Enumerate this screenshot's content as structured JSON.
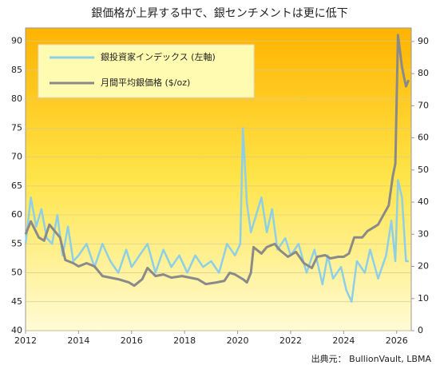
{
  "chart_data": {
    "type": "line",
    "title": "銀価格が上昇する中で、銀センチメントは更に低下",
    "source": "出典元： BullionVault, LBMA",
    "xlim": [
      2012,
      2026.55
    ],
    "xticks": [
      2012,
      2014,
      2016,
      2018,
      2020,
      2022,
      2024,
      2026
    ],
    "ylim": [
      40,
      92.3
    ],
    "yticks": [
      40,
      45,
      50,
      55,
      60,
      65,
      70,
      75,
      80,
      85,
      90
    ],
    "y2lim": [
      0,
      94.2
    ],
    "y2ticks": [
      0,
      10,
      20,
      30,
      40,
      50,
      60,
      70,
      80,
      90
    ],
    "grid": true,
    "series": [
      {
        "name": "銀投資家インデックス (左軸)",
        "color": "#8ecfe8",
        "axis": "y",
        "x": [
          2012.0,
          2012.2,
          2012.4,
          2012.6,
          2012.8,
          2013.0,
          2013.2,
          2013.4,
          2013.6,
          2013.8,
          2014.0,
          2014.3,
          2014.6,
          2014.9,
          2015.2,
          2015.5,
          2015.8,
          2016.0,
          2016.3,
          2016.6,
          2016.9,
          2017.2,
          2017.5,
          2017.8,
          2018.1,
          2018.4,
          2018.7,
          2019.0,
          2019.3,
          2019.6,
          2019.9,
          2020.1,
          2020.2,
          2020.35,
          2020.5,
          2020.7,
          2020.9,
          2021.1,
          2021.3,
          2021.5,
          2021.8,
          2022.0,
          2022.3,
          2022.6,
          2022.9,
          2023.2,
          2023.4,
          2023.6,
          2023.9,
          2024.1,
          2024.3,
          2024.5,
          2024.8,
          2025.0,
          2025.3,
          2025.6,
          2025.8,
          2025.95,
          2026.05,
          2026.2,
          2026.35,
          2026.45
        ],
        "values": [
          55,
          63,
          58,
          61,
          56,
          55,
          60,
          53,
          58,
          52,
          53,
          55,
          51,
          55,
          52,
          50,
          54,
          51,
          53,
          55,
          50,
          54,
          51,
          53,
          50,
          53,
          51,
          52,
          50,
          55,
          53,
          55,
          75,
          62,
          57,
          60,
          63,
          57,
          61,
          54,
          56,
          53,
          55,
          50,
          54,
          48,
          53,
          49,
          51,
          47,
          45,
          52,
          50,
          54,
          49,
          53,
          59,
          52,
          66,
          63,
          52,
          52
        ]
      },
      {
        "name": "月間平均銀価格 ($/oz)",
        "color": "#8a8a8a",
        "axis": "y2",
        "x": [
          2012.0,
          2012.2,
          2012.5,
          2012.7,
          2012.9,
          2013.1,
          2013.3,
          2013.5,
          2013.8,
          2014.0,
          2014.3,
          2014.6,
          2014.9,
          2015.2,
          2015.5,
          2015.9,
          2016.1,
          2016.4,
          2016.6,
          2016.9,
          2017.2,
          2017.5,
          2017.9,
          2018.2,
          2018.5,
          2018.8,
          2019.2,
          2019.5,
          2019.7,
          2019.9,
          2020.2,
          2020.35,
          2020.5,
          2020.6,
          2020.9,
          2021.1,
          2021.4,
          2021.6,
          2021.9,
          2022.2,
          2022.5,
          2022.8,
          2023.0,
          2023.3,
          2023.5,
          2023.8,
          2024.0,
          2024.2,
          2024.4,
          2024.7,
          2024.9,
          2025.1,
          2025.3,
          2025.5,
          2025.7,
          2025.85,
          2025.95,
          2026.05,
          2026.2,
          2026.35,
          2026.45
        ],
        "values": [
          30,
          34,
          29,
          28,
          33,
          31,
          29,
          22,
          21,
          20,
          21,
          20,
          17,
          16.5,
          16,
          15,
          14,
          16,
          19.5,
          17,
          17.5,
          16.5,
          17,
          16.5,
          16,
          14.5,
          15,
          15.5,
          18,
          17.5,
          16,
          15,
          18,
          26,
          24,
          26,
          27,
          25,
          23,
          24.5,
          21,
          19.5,
          23,
          23.5,
          22.5,
          23,
          23,
          24,
          29,
          29,
          31,
          32,
          33,
          36,
          39,
          48,
          52,
          92,
          82,
          76,
          78
        ]
      }
    ]
  }
}
